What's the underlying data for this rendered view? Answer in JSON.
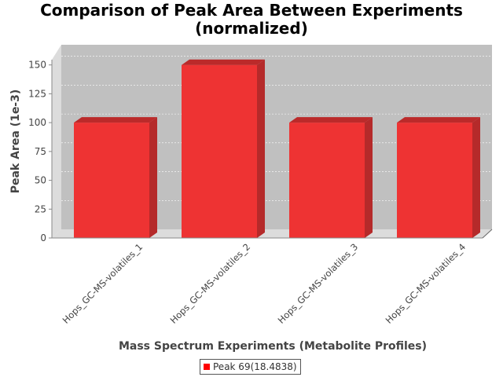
{
  "chart_data": {
    "type": "bar",
    "title_line1": "Comparison of Peak Area Between Experiments",
    "title_line2": "(normalized)",
    "xlabel": "Mass Spectrum Experiments (Metabolite Profiles)",
    "ylabel": "Peak Area (1e-3)",
    "categories": [
      "Hops_GC-MS-volatiles_1",
      "Hops_GC-MS-volatiles_2",
      "Hops_GC-MS-volatiles_3",
      "Hops_GC-MS-volatiles_4"
    ],
    "series": [
      {
        "name": "Peak 69(18.4838)",
        "values": [
          100,
          150,
          100,
          100
        ],
        "color": "#ee3333"
      }
    ],
    "yticks": [
      "0",
      "25",
      "50",
      "75",
      "100",
      "125",
      "150"
    ],
    "ylim": [
      0,
      160
    ],
    "grid": true,
    "legend": "bottom-center",
    "plot_background": "#c0c0c0"
  }
}
